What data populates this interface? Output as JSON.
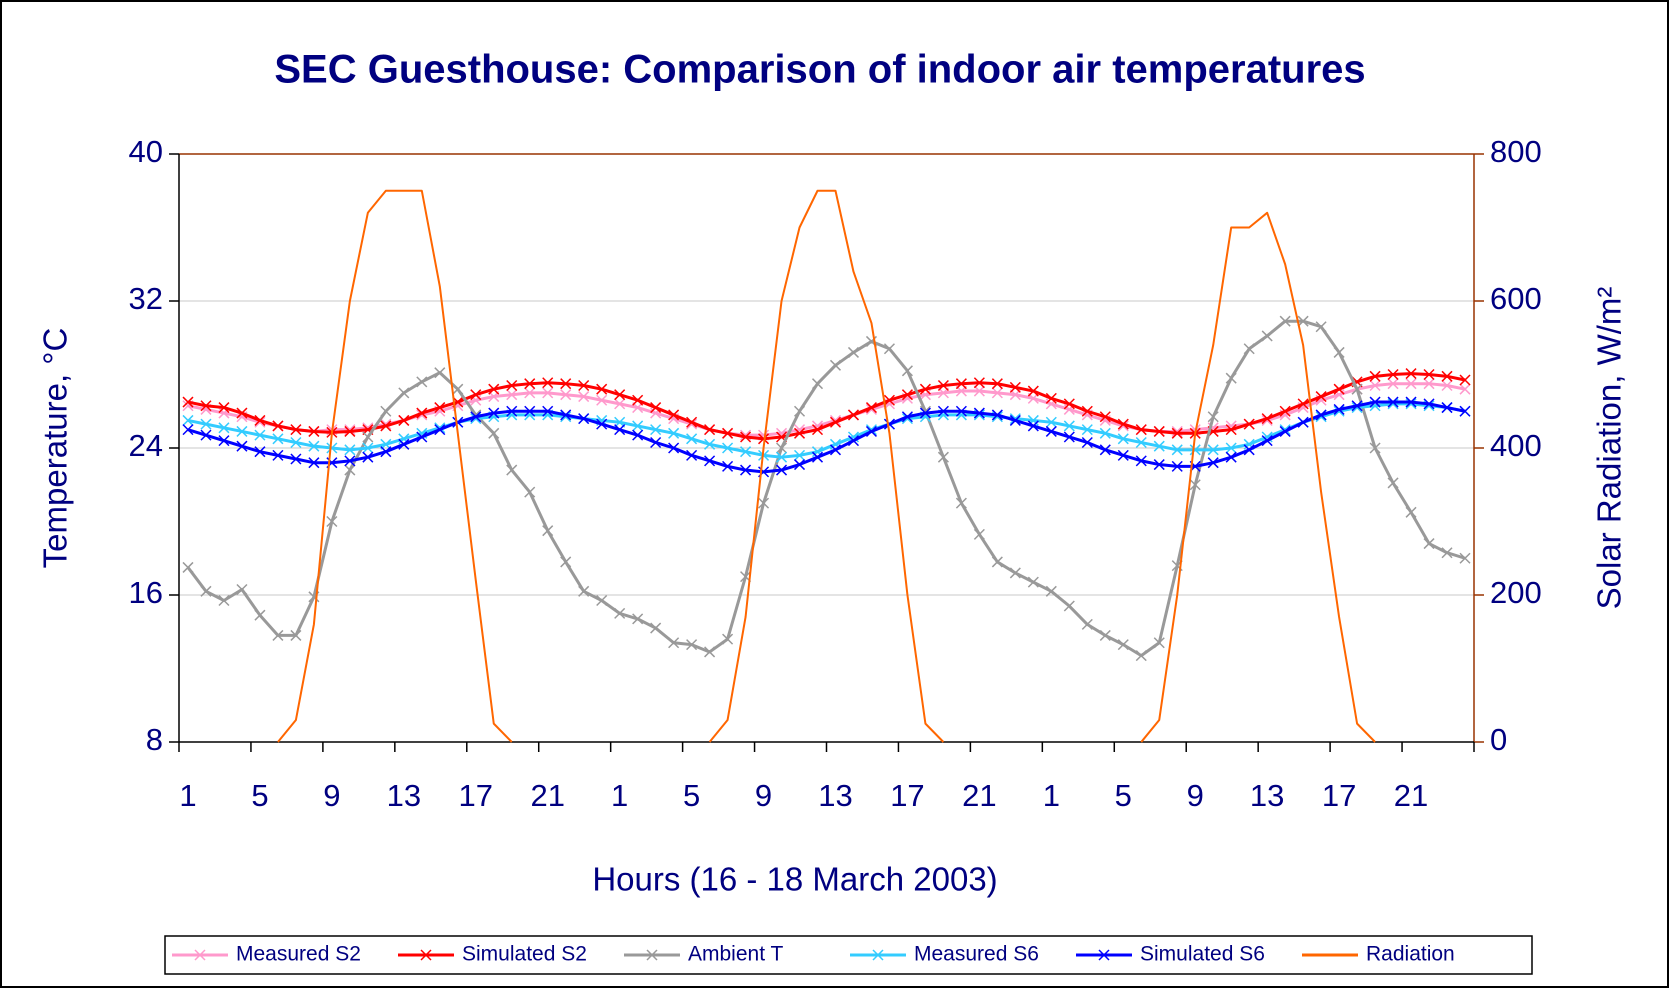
{
  "chart_data": {
    "type": "line",
    "title": "SEC Guesthouse: Comparison of indoor air temperatures",
    "x_label": "Hours (16 - 18 March 2003)",
    "y_label": "Temperature, °C",
    "y2_label": "Solar Radiation, W/m²",
    "categories": [
      "1",
      null,
      null,
      null,
      "5",
      null,
      null,
      null,
      "9",
      null,
      null,
      null,
      "13",
      null,
      null,
      null,
      "17",
      null,
      null,
      null,
      "21",
      null,
      null,
      null,
      "1",
      null,
      null,
      null,
      "5",
      null,
      null,
      null,
      "9",
      null,
      null,
      null,
      "13",
      null,
      null,
      null,
      "17",
      null,
      null,
      null,
      "21",
      null,
      null,
      null,
      "1",
      null,
      null,
      null,
      "5",
      null,
      null,
      null,
      "9",
      null,
      null,
      null,
      "13",
      null,
      null,
      null,
      "17",
      null,
      null,
      null,
      "21",
      null,
      null,
      null
    ],
    "ylim": [
      8,
      40
    ],
    "yticks": [
      8,
      16,
      24,
      32,
      40
    ],
    "y2lim": [
      0,
      800
    ],
    "y2ticks": [
      0,
      200,
      400,
      600,
      800
    ],
    "grid": true,
    "legend": "bottom",
    "series": [
      {
        "name": "Measured S2",
        "color": "#ff99cc",
        "marker": "x",
        "values": [
          26.3,
          26.1,
          25.9,
          25.7,
          25.4,
          25.2,
          25.0,
          24.9,
          25.0,
          25.0,
          25.1,
          25.3,
          25.5,
          25.8,
          26.0,
          26.3,
          26.6,
          26.8,
          26.9,
          27.0,
          27.0,
          26.9,
          26.8,
          26.6,
          26.4,
          26.2,
          25.9,
          25.6,
          25.3,
          25.0,
          24.8,
          24.7,
          24.7,
          24.8,
          25.0,
          25.2,
          25.5,
          25.8,
          26.1,
          26.4,
          26.7,
          26.9,
          27.0,
          27.1,
          27.1,
          27.0,
          26.9,
          26.7,
          26.4,
          26.1,
          25.8,
          25.5,
          25.2,
          25.0,
          24.9,
          24.9,
          25.0,
          25.1,
          25.2,
          25.3,
          25.5,
          25.8,
          26.2,
          26.6,
          26.9,
          27.2,
          27.4,
          27.5,
          27.5,
          27.5,
          27.4,
          27.2
        ]
      },
      {
        "name": "Simulated S2",
        "color": "#ff0000",
        "marker": "x",
        "values": [
          26.5,
          26.3,
          26.2,
          25.9,
          25.5,
          25.2,
          25.0,
          24.9,
          24.85,
          24.9,
          25.0,
          25.2,
          25.5,
          25.9,
          26.2,
          26.5,
          26.9,
          27.2,
          27.4,
          27.5,
          27.55,
          27.5,
          27.4,
          27.2,
          26.9,
          26.6,
          26.2,
          25.8,
          25.4,
          25.0,
          24.8,
          24.6,
          24.5,
          24.6,
          24.8,
          25.0,
          25.4,
          25.8,
          26.2,
          26.6,
          26.9,
          27.2,
          27.4,
          27.5,
          27.55,
          27.5,
          27.3,
          27.1,
          26.7,
          26.4,
          26.0,
          25.7,
          25.3,
          25.0,
          24.9,
          24.8,
          24.8,
          24.9,
          25.0,
          25.3,
          25.6,
          26.0,
          26.4,
          26.8,
          27.2,
          27.6,
          27.9,
          28.0,
          28.05,
          28.0,
          27.9,
          27.7
        ]
      },
      {
        "name": "Ambient T",
        "color": "#999999",
        "marker": "x",
        "values": [
          17.5,
          16.2,
          15.7,
          16.3,
          14.9,
          13.8,
          13.8,
          15.9,
          20.0,
          22.8,
          24.6,
          26.0,
          27.0,
          27.6,
          28.1,
          27.2,
          25.8,
          24.8,
          22.8,
          21.6,
          19.5,
          17.8,
          16.2,
          15.7,
          15.0,
          14.7,
          14.2,
          13.4,
          13.3,
          12.9,
          13.6,
          17.0,
          21.0,
          24.0,
          26.0,
          27.5,
          28.5,
          29.2,
          29.8,
          29.4,
          28.2,
          26.0,
          23.5,
          21.0,
          19.3,
          17.8,
          17.2,
          16.7,
          16.2,
          15.4,
          14.4,
          13.8,
          13.3,
          12.7,
          13.4,
          17.6,
          22.0,
          25.7,
          27.8,
          29.4,
          30.1,
          30.9,
          30.9,
          30.6,
          29.2,
          27.2,
          24.0,
          22.1,
          20.5,
          18.8,
          18.3,
          18.0
        ]
      },
      {
        "name": "Measured S6",
        "color": "#33ccff",
        "marker": "x",
        "values": [
          25.5,
          25.3,
          25.1,
          24.9,
          24.7,
          24.5,
          24.3,
          24.1,
          24.0,
          23.9,
          24.0,
          24.2,
          24.5,
          24.8,
          25.1,
          25.4,
          25.6,
          25.7,
          25.8,
          25.8,
          25.8,
          25.7,
          25.6,
          25.5,
          25.4,
          25.2,
          25.0,
          24.8,
          24.5,
          24.2,
          24.0,
          23.8,
          23.6,
          23.5,
          23.6,
          23.8,
          24.2,
          24.6,
          25.0,
          25.3,
          25.6,
          25.7,
          25.8,
          25.8,
          25.8,
          25.7,
          25.6,
          25.5,
          25.4,
          25.2,
          25.0,
          24.8,
          24.5,
          24.3,
          24.1,
          23.9,
          23.9,
          23.9,
          24.0,
          24.2,
          24.6,
          25.0,
          25.4,
          25.7,
          26.0,
          26.2,
          26.3,
          26.4,
          26.4,
          26.3,
          26.2,
          26.0
        ]
      },
      {
        "name": "Simulated S6",
        "color": "#0000ff",
        "marker": "x",
        "values": [
          25.0,
          24.7,
          24.4,
          24.1,
          23.8,
          23.6,
          23.4,
          23.2,
          23.2,
          23.3,
          23.5,
          23.8,
          24.2,
          24.6,
          25.0,
          25.4,
          25.7,
          25.9,
          26.0,
          26.0,
          26.0,
          25.8,
          25.6,
          25.3,
          25.0,
          24.7,
          24.3,
          24.0,
          23.6,
          23.3,
          23.0,
          22.8,
          22.7,
          22.8,
          23.1,
          23.5,
          23.9,
          24.4,
          24.9,
          25.3,
          25.7,
          25.9,
          26.0,
          26.0,
          25.9,
          25.8,
          25.5,
          25.2,
          24.9,
          24.6,
          24.3,
          23.9,
          23.6,
          23.3,
          23.1,
          23.0,
          23.0,
          23.2,
          23.5,
          23.9,
          24.4,
          24.9,
          25.4,
          25.8,
          26.1,
          26.3,
          26.5,
          26.5,
          26.5,
          26.4,
          26.2,
          26.0
        ]
      },
      {
        "name": "Radiation",
        "color": "#ff6600",
        "axis": "y2",
        "values": [
          null,
          null,
          null,
          null,
          null,
          0,
          30,
          160,
          420,
          600,
          720,
          750,
          750,
          750,
          620,
          420,
          220,
          25,
          0,
          null,
          null,
          null,
          null,
          null,
          null,
          null,
          null,
          null,
          null,
          0,
          30,
          170,
          400,
          600,
          700,
          750,
          750,
          640,
          570,
          420,
          200,
          25,
          0,
          null,
          null,
          null,
          null,
          null,
          null,
          null,
          null,
          null,
          null,
          0,
          30,
          200,
          420,
          540,
          700,
          700,
          720,
          650,
          540,
          340,
          170,
          25,
          0,
          null,
          null,
          null,
          null,
          null
        ]
      }
    ]
  }
}
